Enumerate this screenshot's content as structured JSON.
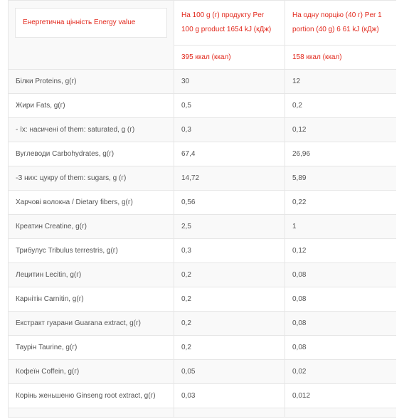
{
  "header": {
    "energy_label": "Енергетична цінність Energy value",
    "per100_label": "На 100 g (г) продукту Per 100 g product 1654 kJ (кДж)",
    "per_serving_label": "На одну порцію (40 г) Per 1 portion (40 g) 6 61 kJ (кДж)",
    "kcal_100": "395 ккал (ккал)",
    "kcal_serving": "158 ккал (ккал)"
  },
  "rows": [
    {
      "name": "Білки Proteins, g(г)",
      "per100": "30",
      "serving": "12"
    },
    {
      "name": "Жири Fats, g(г)",
      "per100": "0,5",
      "serving": "0,2"
    },
    {
      "name": "- їх: насичені of them: saturated, g (г)",
      "per100": "0,3",
      "serving": "0,12"
    },
    {
      "name": "Вуглеводи Carbohydrates, g(г)",
      "per100": "67,4",
      "serving": "26,96"
    },
    {
      "name": "-З них: цукру of them: sugars, g (г)",
      "per100": "14,72",
      "serving": "5,89"
    },
    {
      "name": "Харчові волокна / Dietary fibers, g(г)",
      "per100": "0,56",
      "serving": "0,22"
    },
    {
      "name": "Креатин Creatine, g(г)",
      "per100": "2,5",
      "serving": "1"
    },
    {
      "name": "Трибулус Tribulus terrestris, g(г)",
      "per100": "0,3",
      "serving": "0,12"
    },
    {
      "name": "Лецитин Lecitin, g(г)",
      "per100": "0,2",
      "serving": "0,08"
    },
    {
      "name": "Карнітін Carnitin, g(г)",
      "per100": "0,2",
      "serving": "0,08"
    },
    {
      "name": "Екстракт гуарани Guarana extract, g(г)",
      "per100": "0,2",
      "serving": "0,08"
    },
    {
      "name": "Таурін Taurine, g(г)",
      "per100": "0,2",
      "serving": "0,08"
    },
    {
      "name": "Кофеїн Coffein, g(г)",
      "per100": "0,05",
      "serving": "0,02"
    },
    {
      "name": "Корінь женьшеню Ginseng root extract, g(г)",
      "per100": "0,03",
      "serving": "0,012"
    }
  ]
}
